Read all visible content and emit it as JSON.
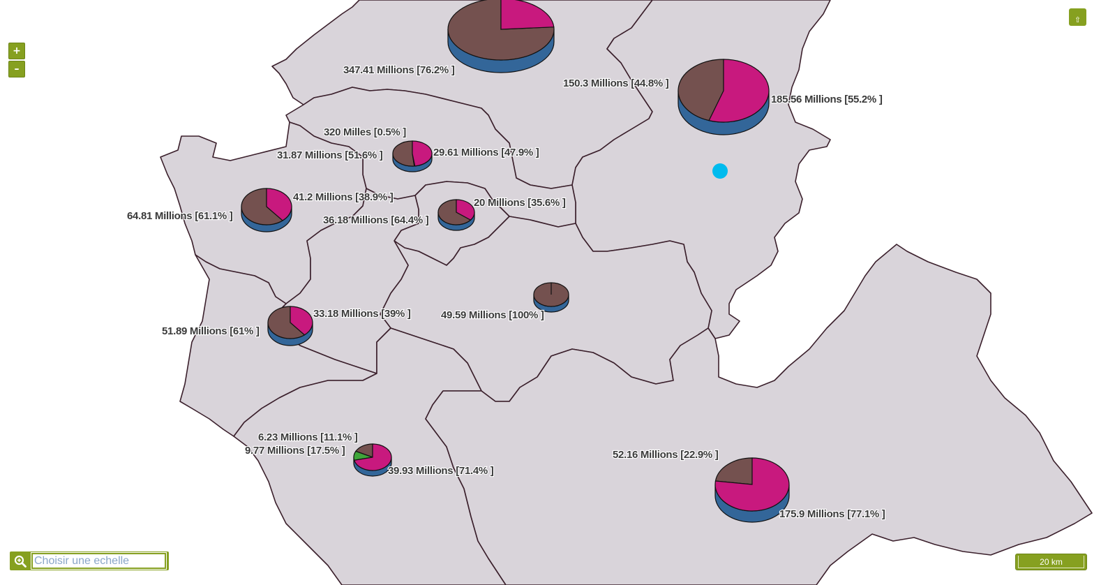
{
  "controls": {
    "zoom_in_label": "+",
    "zoom_out_label": "–",
    "top_right_icon": "up-arrow-icon",
    "scale_input_placeholder": "Choisir une echelle",
    "scale_input_icon": "zoom-search-icon",
    "scale_bar_label": "20 km"
  },
  "colors": {
    "region_fill": "#d9d4da",
    "region_border": "#3a1f2b",
    "pie_brown": "#74514f",
    "pie_magenta": "#c8197e",
    "pie_green": "#3fa53a",
    "pie_side": "#336699",
    "marker": "#00bbee",
    "control_green": "#86a020"
  },
  "pies": [
    {
      "id": "north-top",
      "labels": [
        "347.41 Millions [76.2% ]"
      ]
    },
    {
      "id": "north-east",
      "labels": [
        "150.3 Millions [44.8% ]",
        "185.56 Millions [55.2% ]"
      ]
    },
    {
      "id": "center-north",
      "labels": [
        "320 Milles [0.5% ]",
        "31.87 Millions [51.6% ]",
        "29.61 Millions [47.9% ]"
      ]
    },
    {
      "id": "west",
      "labels": [
        "41.2 Millions [38.9% ]",
        "64.81 Millions [61.1% ]"
      ]
    },
    {
      "id": "center",
      "labels": [
        "20 Millions [35.6% ]",
        "36.18 Millions [64.4% ]"
      ]
    },
    {
      "id": "middle",
      "labels": [
        "49.59 Millions [100% ]"
      ]
    },
    {
      "id": "south-west",
      "labels": [
        "33.18 Millions [39% ]",
        "51.89 Millions [61% ]"
      ]
    },
    {
      "id": "south",
      "labels": [
        "6.23 Millions [11.1% ]",
        "9.77 Millions [17.5% ]",
        "39.93 Millions [71.4% ]"
      ]
    },
    {
      "id": "south-east",
      "labels": [
        "52.16 Millions [22.9% ]",
        "175.9 Millions [77.1% ]"
      ]
    }
  ]
}
